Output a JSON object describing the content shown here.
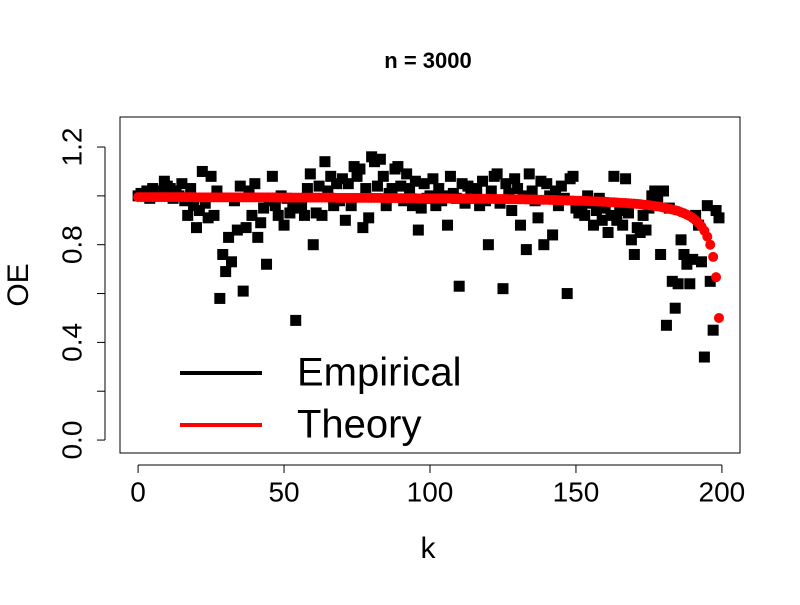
{
  "chart_data": {
    "type": "scatter",
    "title": "n =  3000",
    "x_label": "k",
    "y_label": "OE",
    "xlim": [
      -6.2,
      206.2
    ],
    "ylim": [
      -0.053,
      1.323
    ],
    "xticks": [
      0,
      50,
      100,
      150,
      200
    ],
    "yticks": [
      {
        "value": 0,
        "label": "0.0"
      },
      {
        "value": 0.2,
        "label": null
      },
      {
        "value": 0.4,
        "label": "0.4"
      },
      {
        "value": 0.6,
        "label": null
      },
      {
        "value": 0.8,
        "label": "0.8"
      },
      {
        "value": 1.0,
        "label": null
      },
      {
        "value": 1.2,
        "label": "1.2"
      }
    ],
    "legend": "bottomleft",
    "x": [
      0,
      1,
      2,
      3,
      4,
      5,
      6,
      7,
      8,
      9,
      10,
      11,
      12,
      13,
      14,
      15,
      16,
      17,
      18,
      19,
      20,
      21,
      22,
      23,
      24,
      25,
      26,
      27,
      28,
      29,
      30,
      31,
      32,
      33,
      34,
      35,
      36,
      37,
      38,
      39,
      40,
      41,
      42,
      43,
      44,
      45,
      46,
      47,
      48,
      49,
      50,
      51,
      52,
      53,
      54,
      55,
      56,
      57,
      58,
      59,
      60,
      61,
      62,
      63,
      64,
      65,
      66,
      67,
      68,
      69,
      70,
      71,
      72,
      73,
      74,
      75,
      76,
      77,
      78,
      79,
      80,
      81,
      82,
      83,
      84,
      85,
      86,
      87,
      88,
      89,
      90,
      91,
      92,
      93,
      94,
      95,
      96,
      97,
      98,
      99,
      100,
      101,
      102,
      103,
      104,
      105,
      106,
      107,
      108,
      109,
      110,
      111,
      112,
      113,
      114,
      115,
      116,
      117,
      118,
      119,
      120,
      121,
      122,
      123,
      124,
      125,
      126,
      127,
      128,
      129,
      130,
      131,
      132,
      133,
      134,
      135,
      136,
      137,
      138,
      139,
      140,
      141,
      142,
      143,
      144,
      145,
      146,
      147,
      148,
      149,
      150,
      151,
      152,
      153,
      154,
      155,
      156,
      157,
      158,
      159,
      160,
      161,
      162,
      163,
      164,
      165,
      166,
      167,
      168,
      169,
      170,
      171,
      172,
      173,
      174,
      175,
      176,
      177,
      178,
      179,
      180,
      181,
      182,
      183,
      184,
      185,
      186,
      187,
      188,
      189,
      190,
      191,
      192,
      193,
      194,
      195,
      196,
      197,
      198,
      199
    ],
    "series": [
      {
        "name": "Empirical",
        "color": "#000000",
        "marker": "square",
        "values": [
          1.0,
          1.01,
          1.0,
          1.02,
          0.99,
          1.03,
          1.0,
          1.02,
          1.01,
          1.06,
          1.04,
          1.03,
          0.99,
          1.02,
          1.0,
          1.05,
          0.98,
          0.92,
          1.03,
          0.96,
          0.87,
          0.94,
          1.1,
          0.97,
          0.91,
          1.08,
          0.92,
          1.02,
          0.58,
          0.76,
          0.69,
          0.83,
          0.73,
          0.98,
          0.86,
          1.04,
          0.61,
          0.87,
          1.02,
          0.92,
          1.05,
          0.83,
          0.89,
          0.95,
          0.72,
          0.98,
          1.08,
          0.96,
          0.92,
          1.0,
          0.88,
          0.99,
          0.93,
          0.97,
          0.49,
          0.95,
          0.96,
          0.92,
          1.03,
          1.09,
          0.8,
          0.93,
          1.04,
          0.92,
          1.14,
          1.02,
          1.08,
          0.96,
          1.05,
          0.98,
          1.07,
          0.9,
          1.05,
          0.96,
          1.12,
          1.08,
          1.11,
          0.87,
          1.03,
          0.91,
          1.16,
          1.14,
          1.04,
          1.15,
          1.08,
          0.96,
          1.01,
          1.03,
          1.11,
          1.12,
          1.04,
          0.98,
          1.09,
          1.03,
          0.96,
          1.06,
          0.86,
          0.95,
          1.05,
          0.99,
          1.0,
          1.07,
          0.96,
          1.03,
          0.98,
          1.0,
          0.88,
          1.08,
          1.01,
          0.99,
          0.63,
          1.05,
          0.97,
          1.04,
          1.0,
          0.99,
          1.03,
          0.96,
          1.06,
          0.98,
          0.8,
          1.02,
          1.08,
          1.09,
          0.97,
          0.62,
          1.05,
          1.01,
          0.94,
          1.07,
          1.03,
          0.88,
          1.0,
          0.78,
          1.09,
          1.02,
          0.98,
          0.91,
          1.06,
          0.8,
          1.05,
          1.0,
          0.84,
          1.02,
          0.96,
          1.04,
          0.99,
          0.6,
          1.07,
          1.08,
          0.95,
          0.93,
          0.96,
          0.92,
          1.0,
          0.97,
          0.88,
          0.94,
          0.99,
          0.9,
          0.95,
          0.85,
          0.92,
          1.08,
          0.9,
          0.94,
          0.88,
          1.07,
          0.93,
          0.82,
          0.76,
          0.87,
          0.85,
          0.92,
          0.86,
          0.95,
          1.0,
          1.02,
          0.98,
          0.76,
          1.02,
          0.47,
          0.95,
          0.65,
          0.54,
          0.64,
          0.82,
          0.76,
          0.72,
          0.64,
          0.74,
          0.92,
          0.88,
          0.73,
          0.34,
          0.96,
          0.65,
          0.45,
          0.94,
          0.91
        ]
      },
      {
        "name": "Theory",
        "color": "#ff0000",
        "marker": "circle",
        "values": [
          0.995,
          0.995,
          0.995,
          0.995,
          0.995,
          0.995,
          0.995,
          0.995,
          0.995,
          0.995,
          0.995,
          0.995,
          0.995,
          0.995,
          0.995,
          0.995,
          0.995,
          0.995,
          0.995,
          0.995,
          0.994,
          0.994,
          0.994,
          0.994,
          0.994,
          0.994,
          0.994,
          0.994,
          0.994,
          0.994,
          0.994,
          0.994,
          0.994,
          0.994,
          0.994,
          0.994,
          0.994,
          0.994,
          0.994,
          0.994,
          0.994,
          0.994,
          0.994,
          0.994,
          0.994,
          0.994,
          0.994,
          0.994,
          0.993,
          0.993,
          0.993,
          0.993,
          0.993,
          0.993,
          0.993,
          0.993,
          0.993,
          0.993,
          0.993,
          0.993,
          0.993,
          0.993,
          0.993,
          0.993,
          0.993,
          0.993,
          0.993,
          0.993,
          0.992,
          0.992,
          0.992,
          0.992,
          0.992,
          0.992,
          0.992,
          0.992,
          0.992,
          0.992,
          0.992,
          0.992,
          0.992,
          0.992,
          0.992,
          0.992,
          0.991,
          0.991,
          0.991,
          0.991,
          0.991,
          0.991,
          0.991,
          0.991,
          0.991,
          0.991,
          0.991,
          0.991,
          0.99,
          0.99,
          0.99,
          0.99,
          0.99,
          0.99,
          0.99,
          0.99,
          0.99,
          0.99,
          0.989,
          0.989,
          0.989,
          0.989,
          0.989,
          0.989,
          0.989,
          0.989,
          0.989,
          0.988,
          0.988,
          0.988,
          0.988,
          0.988,
          0.988,
          0.987,
          0.987,
          0.987,
          0.987,
          0.987,
          0.987,
          0.986,
          0.986,
          0.986,
          0.986,
          0.986,
          0.986,
          0.985,
          0.985,
          0.985,
          0.985,
          0.984,
          0.984,
          0.984,
          0.984,
          0.983,
          0.983,
          0.983,
          0.982,
          0.982,
          0.982,
          0.981,
          0.981,
          0.981,
          0.98,
          0.98,
          0.98,
          0.979,
          0.979,
          0.978,
          0.978,
          0.977,
          0.977,
          0.976,
          0.976,
          0.975,
          0.974,
          0.974,
          0.973,
          0.972,
          0.971,
          0.971,
          0.97,
          0.969,
          0.968,
          0.967,
          0.966,
          0.964,
          0.963,
          0.962,
          0.96,
          0.958,
          0.957,
          0.955,
          0.952,
          0.95,
          0.947,
          0.944,
          0.941,
          0.938,
          0.933,
          0.929,
          0.923,
          0.917,
          0.909,
          0.9,
          0.889,
          0.875,
          0.857,
          0.833,
          0.8,
          0.75,
          0.667,
          0.5
        ]
      }
    ]
  }
}
